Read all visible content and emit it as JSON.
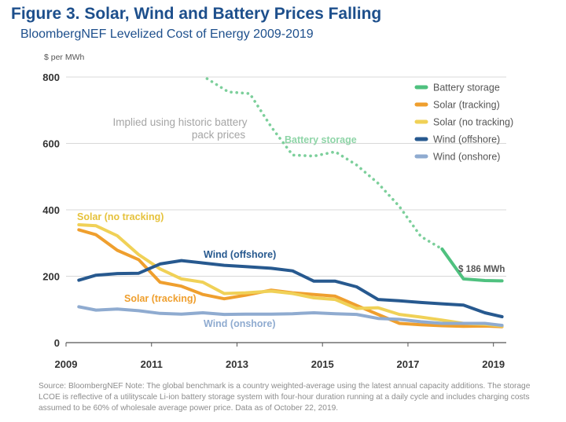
{
  "header": {
    "title": "Figure 3. Solar, Wind and Battery Prices Falling",
    "subtitle": "BloombergNEF Levelized Cost of Energy 2009-2019"
  },
  "source_note": "Source: BloombergNEF Note: The global benchmark is a country weighted-average using the latest annual capacity additions. The storage LCOE is reflective of a utilityscale Li-ion battery storage system with four-hour duration running at a daily cycle and includes charging costs assumed to be 60% of wholesale average power price. Data as of October 22, 2019.",
  "chart_data": {
    "type": "line",
    "ylabel": "$ per MWh",
    "xlabel": "",
    "xlim": [
      2009,
      2019.3
    ],
    "ylim": [
      0,
      800
    ],
    "xticks": [
      "2009",
      "2011",
      "2013",
      "2015",
      "2017",
      "2019"
    ],
    "yticks": [
      "0",
      "200",
      "400",
      "600",
      "800"
    ],
    "legend": [
      "Battery storage",
      "Solar (tracking)",
      "Solar (no tracking)",
      "Wind (offshore)",
      "Wind (onshore)"
    ],
    "annotations": {
      "implied_line1": "Implied using historic battery",
      "implied_line2": "pack prices",
      "battery_label": "Battery storage",
      "solar_no_tracking_label": "Solar (no tracking)",
      "wind_offshore_label": "Wind (offshore)",
      "solar_tracking_label": "Solar (tracking)",
      "wind_onshore_label": "Wind (onshore)",
      "battery_value": "$ 186 MWh"
    },
    "series": [
      {
        "name": "Battery storage (implied)",
        "color": "#7ccf9b",
        "dashed": true,
        "x": [
          2012.3,
          2012.8,
          2013.3,
          2013.8,
          2014.3,
          2014.8,
          2015.3,
          2015.8,
          2016.3,
          2016.8,
          2017.3,
          2017.8
        ],
        "y": [
          795,
          755,
          750,
          650,
          565,
          562,
          575,
          535,
          480,
          410,
          320,
          282
        ]
      },
      {
        "name": "Battery storage",
        "color": "#4fc17f",
        "dashed": false,
        "x": [
          2017.8,
          2018.3,
          2018.8,
          2019.2
        ],
        "y": [
          282,
          192,
          187,
          186
        ]
      },
      {
        "name": "Solar (tracking)",
        "color": "#ef9f2e",
        "dashed": false,
        "x": [
          2009.3,
          2009.7,
          2010.2,
          2010.7,
          2011.2,
          2011.7,
          2012.2,
          2012.7,
          2013.2,
          2013.8,
          2014.3,
          2014.8,
          2015.3,
          2015.8,
          2016.3,
          2016.8,
          2017.3,
          2017.8,
          2018.3,
          2018.8,
          2019.2
        ],
        "y": [
          340,
          325,
          278,
          250,
          182,
          170,
          145,
          132,
          143,
          158,
          150,
          145,
          140,
          112,
          85,
          58,
          54,
          51,
          49,
          50,
          48
        ]
      },
      {
        "name": "Solar (no tracking)",
        "color": "#f0d157",
        "dashed": false,
        "x": [
          2009.3,
          2009.7,
          2010.2,
          2010.7,
          2011.2,
          2011.7,
          2012.2,
          2012.7,
          2013.2,
          2013.8,
          2014.3,
          2014.8,
          2015.3,
          2015.8,
          2016.3,
          2016.8,
          2017.3,
          2017.8,
          2018.3,
          2018.8,
          2019.2
        ],
        "y": [
          355,
          352,
          322,
          265,
          222,
          192,
          182,
          148,
          150,
          155,
          148,
          135,
          130,
          103,
          105,
          85,
          77,
          68,
          58,
          55,
          50
        ]
      },
      {
        "name": "Wind (offshore)",
        "color": "#27598f",
        "dashed": false,
        "x": [
          2009.3,
          2009.7,
          2010.2,
          2010.7,
          2011.2,
          2011.7,
          2012.2,
          2012.7,
          2013.2,
          2013.8,
          2014.3,
          2014.8,
          2015.3,
          2015.8,
          2016.3,
          2016.8,
          2017.3,
          2017.8,
          2018.3,
          2018.8,
          2019.2
        ],
        "y": [
          188,
          203,
          208,
          209,
          237,
          247,
          240,
          233,
          229,
          224,
          216,
          185,
          185,
          168,
          130,
          126,
          121,
          117,
          113,
          90,
          78
        ]
      },
      {
        "name": "Wind (onshore)",
        "color": "#8fabd0",
        "dashed": false,
        "x": [
          2009.3,
          2009.7,
          2010.2,
          2010.7,
          2011.2,
          2011.7,
          2012.2,
          2012.7,
          2013.2,
          2013.8,
          2014.3,
          2014.8,
          2015.3,
          2015.8,
          2016.3,
          2016.8,
          2017.3,
          2017.8,
          2018.3,
          2018.8,
          2019.2
        ],
        "y": [
          108,
          98,
          101,
          96,
          88,
          86,
          90,
          85,
          86,
          86,
          87,
          90,
          87,
          85,
          73,
          70,
          63,
          58,
          58,
          58,
          52
        ]
      }
    ]
  }
}
